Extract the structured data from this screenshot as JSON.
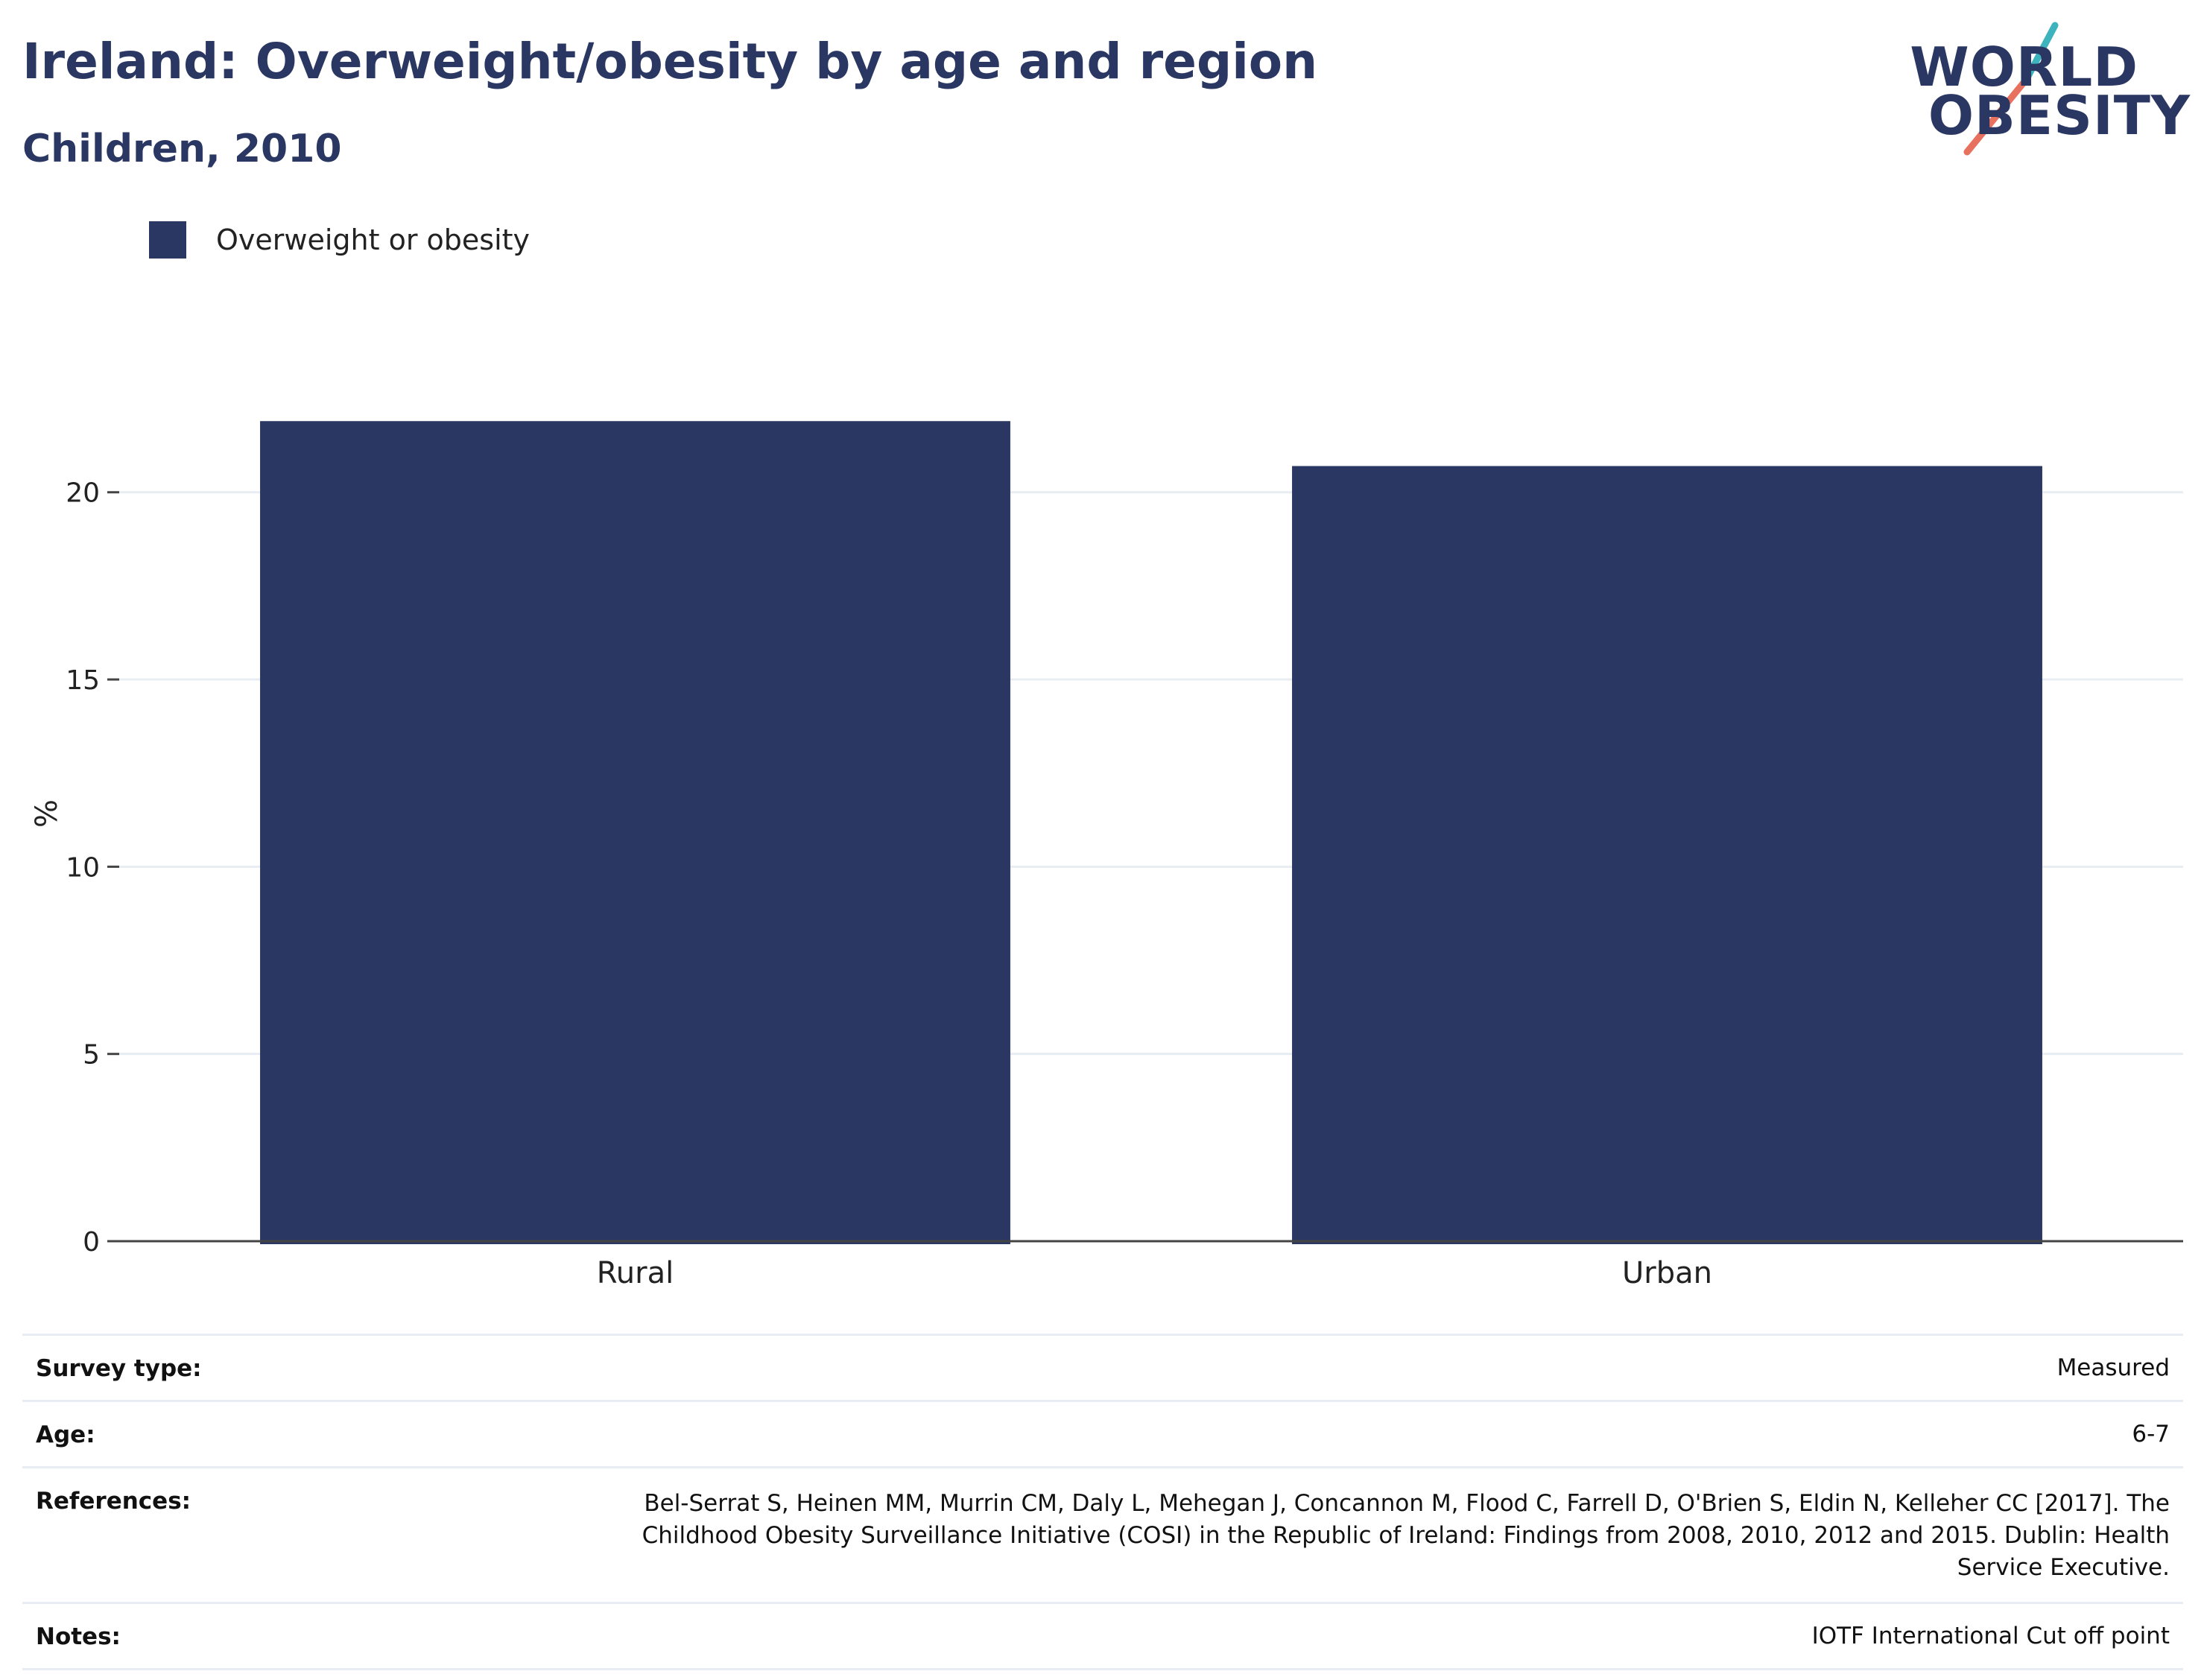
{
  "header": {
    "title": "Ireland: Overweight/obesity by age and region",
    "subtitle": "Children, 2010"
  },
  "logo": {
    "line1": "WORLD",
    "line2": "OBESITY",
    "colors": {
      "navy": "#2a3762",
      "teal": "#3cb3bd",
      "coral": "#e8705f"
    }
  },
  "legend": {
    "label": "Overweight or obesity",
    "color": "#2a3762"
  },
  "chart_data": {
    "type": "bar",
    "categories": [
      "Rural",
      "Urban"
    ],
    "series": [
      {
        "name": "Overweight or obesity",
        "values": [
          21.9,
          20.7
        ],
        "color": "#2a3762"
      }
    ],
    "ylabel": "%",
    "ylim": [
      0,
      22.8
    ],
    "yticks": [
      0,
      5,
      10,
      15,
      20
    ],
    "grid": true,
    "legend_position": "top-left"
  },
  "meta": {
    "rows": [
      {
        "key": "Survey type:",
        "value": "Measured"
      },
      {
        "key": "Age:",
        "value": "6-7"
      },
      {
        "key": "References:",
        "value": "Bel-Serrat S, Heinen MM, Murrin CM, Daly L, Mehegan J, Concannon M, Flood C, Farrell D, O'Brien S, Eldin N, Kelleher CC [2017]. The Childhood Obesity Surveillance Initiative (COSI) in the Republic of Ireland: Findings from 2008, 2010, 2012 and 2015. Dublin: Health Service Executive."
      },
      {
        "key": "Notes:",
        "value": "IOTF International Cut off point"
      }
    ]
  }
}
